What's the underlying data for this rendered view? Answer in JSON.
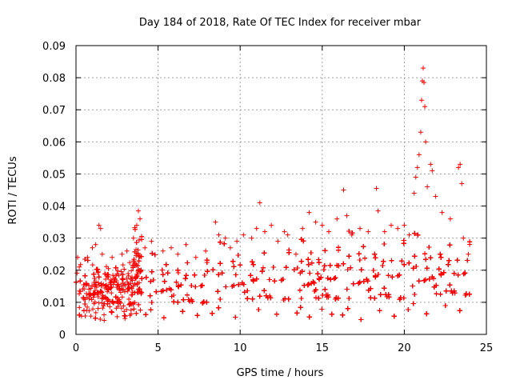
{
  "chart_data": {
    "type": "scatter",
    "title": "Day 184 of 2018, Rate Of TEC Index for receiver mbar",
    "xlabel": "GPS time / hours",
    "ylabel": "ROTI / TECUs",
    "xlim": [
      0,
      25
    ],
    "ylim": [
      0,
      0.09
    ],
    "grid": true,
    "marker": "+",
    "colors": {
      "series": "#ff0000",
      "axis": "#000000",
      "grid": "#a0a0a0"
    },
    "x_ticks": [
      0,
      5,
      10,
      15,
      20,
      25
    ],
    "y_ticks": [
      0,
      0.01,
      0.02,
      0.03,
      0.04,
      0.05,
      0.06,
      0.07,
      0.08,
      0.09
    ],
    "x_tick_labels": [
      "0",
      "5",
      "10",
      "15",
      "20",
      "25"
    ],
    "y_tick_labels": [
      "0",
      "0.01",
      "0.02",
      "0.03",
      "0.04",
      "0.05",
      "0.06",
      "0.07",
      "0.08",
      "0.09"
    ],
    "series": [
      {
        "name": "ROTI",
        "description": "dense scatter of ROTI values between about 0.004 and 0.03 TECU/s from 0 to 24 hours, with a small data gap near 13 h and isolated peaks",
        "density_profile": [
          {
            "x": [
              0.0,
              3.5
            ],
            "y_range": [
              0.004,
              0.026
            ]
          },
          {
            "x": [
              3.5,
              4.0
            ],
            "y_range": [
              0.005,
              0.037
            ]
          },
          {
            "x": [
              4.0,
              8.0
            ],
            "y_range": [
              0.004,
              0.028
            ]
          },
          {
            "x": [
              8.0,
              13.0
            ],
            "y_range": [
              0.004,
              0.032
            ]
          },
          {
            "x": [
              13.3,
              16.0
            ],
            "y_range": [
              0.004,
              0.033
            ]
          },
          {
            "x": [
              16.0,
              20.0
            ],
            "y_range": [
              0.003,
              0.036
            ]
          },
          {
            "x": [
              20.0,
              24.0
            ],
            "y_range": [
              0.005,
              0.035
            ]
          }
        ],
        "points": [
          {
            "x": 0.1,
            "y": 0.024
          },
          {
            "x": 0.2,
            "y": 0.021
          },
          {
            "x": 0.7,
            "y": 0.024
          },
          {
            "x": 1.0,
            "y": 0.027
          },
          {
            "x": 1.2,
            "y": 0.028
          },
          {
            "x": 1.4,
            "y": 0.034
          },
          {
            "x": 1.5,
            "y": 0.033
          },
          {
            "x": 1.6,
            "y": 0.025
          },
          {
            "x": 2.2,
            "y": 0.024
          },
          {
            "x": 2.8,
            "y": 0.025
          },
          {
            "x": 3.1,
            "y": 0.026
          },
          {
            "x": 3.5,
            "y": 0.03
          },
          {
            "x": 3.7,
            "y": 0.034
          },
          {
            "x": 3.8,
            "y": 0.0385
          },
          {
            "x": 3.9,
            "y": 0.036
          },
          {
            "x": 4.2,
            "y": 0.027
          },
          {
            "x": 4.6,
            "y": 0.029
          },
          {
            "x": 5.3,
            "y": 0.026
          },
          {
            "x": 5.8,
            "y": 0.027
          },
          {
            "x": 6.2,
            "y": 0.025
          },
          {
            "x": 6.7,
            "y": 0.028
          },
          {
            "x": 7.3,
            "y": 0.024
          },
          {
            "x": 7.9,
            "y": 0.026
          },
          {
            "x": 8.5,
            "y": 0.035
          },
          {
            "x": 8.7,
            "y": 0.031
          },
          {
            "x": 9.1,
            "y": 0.03
          },
          {
            "x": 9.4,
            "y": 0.027
          },
          {
            "x": 9.8,
            "y": 0.029
          },
          {
            "x": 10.2,
            "y": 0.031
          },
          {
            "x": 10.7,
            "y": 0.03
          },
          {
            "x": 11.0,
            "y": 0.033
          },
          {
            "x": 11.2,
            "y": 0.041
          },
          {
            "x": 11.5,
            "y": 0.032
          },
          {
            "x": 11.9,
            "y": 0.034
          },
          {
            "x": 12.3,
            "y": 0.029
          },
          {
            "x": 12.7,
            "y": 0.032
          },
          {
            "x": 12.9,
            "y": 0.031
          },
          {
            "x": 13.4,
            "y": 0.025
          },
          {
            "x": 13.8,
            "y": 0.033
          },
          {
            "x": 14.2,
            "y": 0.038
          },
          {
            "x": 14.6,
            "y": 0.035
          },
          {
            "x": 15.0,
            "y": 0.034
          },
          {
            "x": 15.4,
            "y": 0.032
          },
          {
            "x": 15.9,
            "y": 0.036
          },
          {
            "x": 16.3,
            "y": 0.045
          },
          {
            "x": 16.5,
            "y": 0.037
          },
          {
            "x": 16.8,
            "y": 0.031
          },
          {
            "x": 17.3,
            "y": 0.033
          },
          {
            "x": 17.8,
            "y": 0.032
          },
          {
            "x": 18.3,
            "y": 0.0455
          },
          {
            "x": 18.4,
            "y": 0.0385
          },
          {
            "x": 18.8,
            "y": 0.032
          },
          {
            "x": 19.2,
            "y": 0.034
          },
          {
            "x": 19.6,
            "y": 0.033
          },
          {
            "x": 20.0,
            "y": 0.034
          },
          {
            "x": 20.3,
            "y": 0.031
          },
          {
            "x": 20.6,
            "y": 0.044
          },
          {
            "x": 20.7,
            "y": 0.049
          },
          {
            "x": 20.8,
            "y": 0.052
          },
          {
            "x": 20.9,
            "y": 0.056
          },
          {
            "x": 21.0,
            "y": 0.063
          },
          {
            "x": 21.05,
            "y": 0.073
          },
          {
            "x": 21.1,
            "y": 0.079
          },
          {
            "x": 21.15,
            "y": 0.083
          },
          {
            "x": 21.2,
            "y": 0.0785
          },
          {
            "x": 21.25,
            "y": 0.071
          },
          {
            "x": 21.3,
            "y": 0.06
          },
          {
            "x": 21.4,
            "y": 0.046
          },
          {
            "x": 21.6,
            "y": 0.053
          },
          {
            "x": 21.7,
            "y": 0.051
          },
          {
            "x": 21.9,
            "y": 0.043
          },
          {
            "x": 22.3,
            "y": 0.038
          },
          {
            "x": 22.8,
            "y": 0.036
          },
          {
            "x": 23.3,
            "y": 0.052
          },
          {
            "x": 23.4,
            "y": 0.053
          },
          {
            "x": 23.5,
            "y": 0.047
          },
          {
            "x": 23.6,
            "y": 0.03
          },
          {
            "x": 23.9,
            "y": 0.025
          }
        ]
      }
    ]
  }
}
